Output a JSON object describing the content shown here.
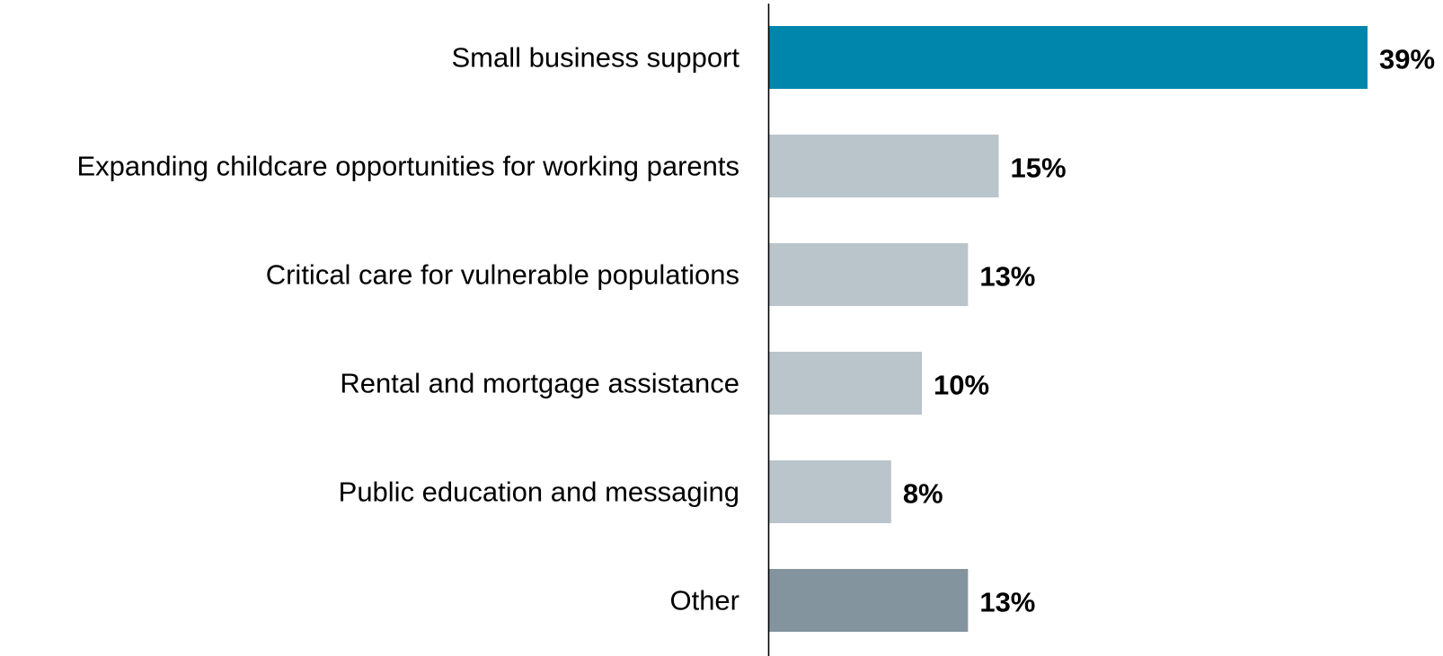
{
  "chart_data": {
    "type": "bar",
    "orientation": "horizontal",
    "categories": [
      "Small business support",
      "Expanding childcare opportunities for working parents",
      "Critical care for vulnerable populations",
      "Rental and mortgage assistance",
      "Public education and messaging",
      "Other"
    ],
    "values": [
      39,
      15,
      13,
      10,
      8,
      13
    ],
    "value_labels": [
      "39%",
      "15%",
      "13%",
      "10%",
      "8%",
      "13%"
    ],
    "colors": [
      "#0085AD",
      "#BAC4CB",
      "#BAC4CB",
      "#BAC4CB",
      "#BAC4CB",
      "#84949E"
    ],
    "axis_color": "#000000",
    "title": "",
    "xlabel": "",
    "ylabel": "",
    "xlim": [
      0,
      39
    ],
    "grid": false,
    "legend": "none"
  }
}
